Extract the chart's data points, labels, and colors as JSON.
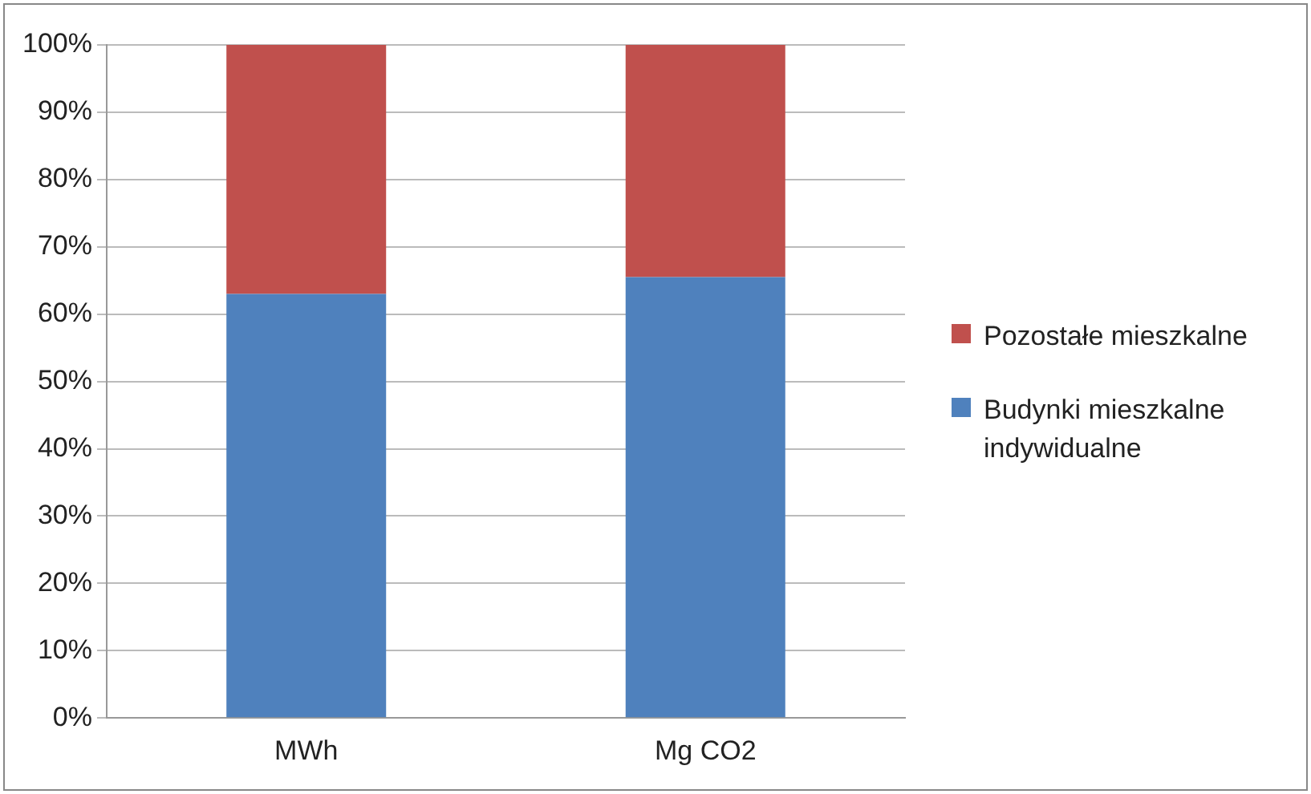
{
  "chart_data": {
    "type": "bar",
    "stacked": true,
    "categories": [
      "MWh",
      "Mg CO2"
    ],
    "series": [
      {
        "name": "Budynki mieszkalne indywidualne",
        "color": "#4f81bd",
        "values": [
          63,
          65.5
        ]
      },
      {
        "name": "Pozostałe mieszkalne",
        "color": "#c0504d",
        "values": [
          37,
          34.5
        ]
      }
    ],
    "ylim": [
      0,
      100
    ],
    "yticks": [
      {
        "value": 0,
        "label": "0%"
      },
      {
        "value": 10,
        "label": "10%"
      },
      {
        "value": 20,
        "label": "20%"
      },
      {
        "value": 30,
        "label": "30%"
      },
      {
        "value": 40,
        "label": "40%"
      },
      {
        "value": 50,
        "label": "50%"
      },
      {
        "value": 60,
        "label": "60%"
      },
      {
        "value": 70,
        "label": "70%"
      },
      {
        "value": 80,
        "label": "80%"
      },
      {
        "value": 90,
        "label": "90%"
      },
      {
        "value": 100,
        "label": "100%"
      }
    ],
    "grid": "y",
    "legend": "right"
  }
}
